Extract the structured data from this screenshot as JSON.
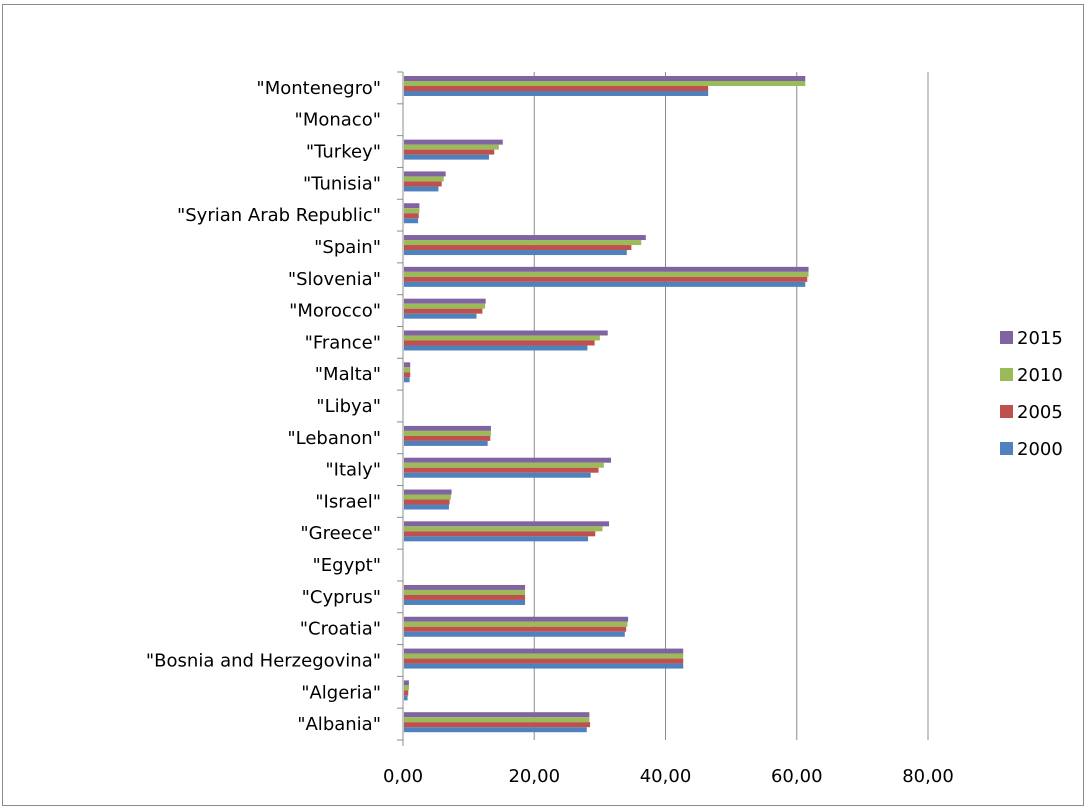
{
  "chart_data": {
    "type": "bar",
    "orientation": "horizontal",
    "categories": [
      "\"Montenegro\"",
      "\"Monaco\"",
      "\"Turkey\"",
      "\"Tunisia\"",
      "\"Syrian Arab Republic\"",
      "\"Spain\"",
      "\"Slovenia\"",
      "\"Morocco\"",
      "\"France\"",
      "\"Malta\"",
      "\"Libya\"",
      "\"Lebanon\"",
      "\"Italy\"",
      "\"Israel\"",
      "\"Greece\"",
      "\"Egypt\"",
      "\"Cyprus\"",
      "\"Croatia\"",
      "\"Bosnia and Herzegovina\"",
      "\"Algeria\"",
      "\"Albania\""
    ],
    "series": [
      {
        "name": "2015",
        "color": "#8064a2",
        "values": [
          61.3,
          0,
          15.2,
          6.5,
          2.5,
          37.0,
          61.8,
          12.6,
          31.2,
          1.1,
          0,
          13.4,
          31.7,
          7.4,
          31.4,
          0,
          18.6,
          34.3,
          42.7,
          0.9,
          28.4
        ]
      },
      {
        "name": "2010",
        "color": "#9bbb59",
        "values": [
          61.3,
          0,
          14.6,
          6.2,
          2.5,
          36.3,
          61.8,
          12.5,
          30.0,
          1.1,
          0,
          13.4,
          30.6,
          7.3,
          30.4,
          0,
          18.6,
          34.2,
          42.7,
          0.9,
          28.4
        ]
      },
      {
        "name": "2005",
        "color": "#c0504d",
        "values": [
          46.5,
          0,
          13.9,
          5.9,
          2.4,
          34.8,
          61.6,
          12.1,
          29.2,
          1.1,
          0,
          13.3,
          29.8,
          7.1,
          29.3,
          0,
          18.6,
          34.0,
          42.7,
          0.8,
          28.5
        ]
      },
      {
        "name": "2000",
        "color": "#4f81bd",
        "values": [
          46.5,
          0,
          13.1,
          5.4,
          2.3,
          34.1,
          61.3,
          11.2,
          28.1,
          1.0,
          0,
          12.9,
          28.6,
          7.0,
          28.2,
          0,
          18.6,
          33.8,
          42.7,
          0.7,
          28.0
        ]
      }
    ],
    "x_ticks": [
      "0,00",
      "20,00",
      "40,00",
      "60,00",
      "80,00"
    ],
    "xlim": [
      0,
      80
    ],
    "title": "",
    "xlabel": "",
    "ylabel": "",
    "grid": "vertical major gridlines",
    "legend_position": "right",
    "legend": [
      "2015",
      "2010",
      "2005",
      "2000"
    ]
  }
}
